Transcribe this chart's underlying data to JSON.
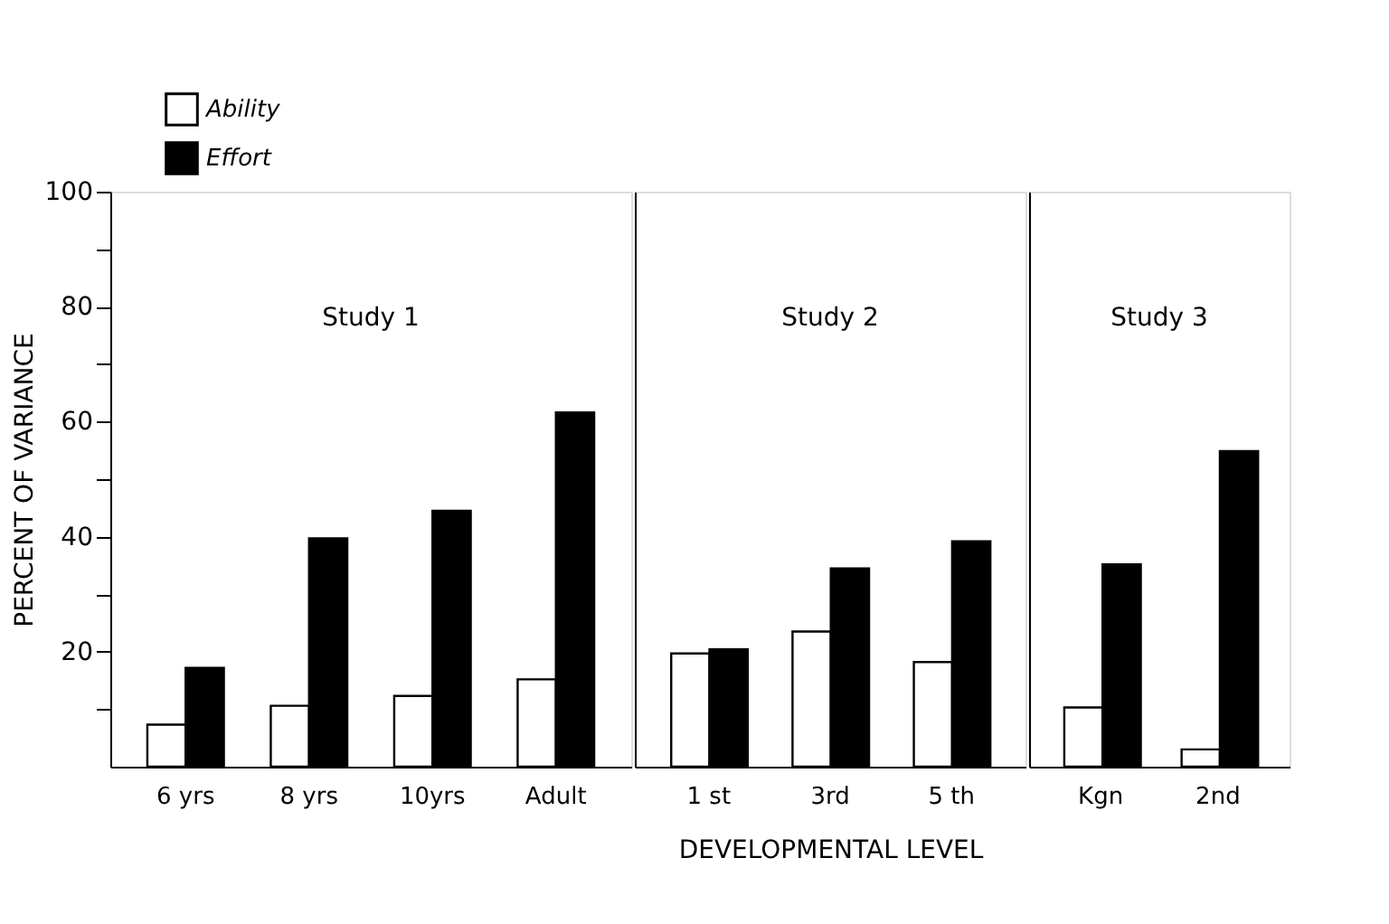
{
  "chart_data": [
    {
      "type": "bar",
      "categories": [
        "6 yrs",
        "8 yrs",
        "10yrs",
        "Adult"
      ],
      "ylabel": "PERCENT OF VARIANCE",
      "ylim": [
        0,
        100
      ],
      "yticks": [
        {
          "value": 10,
          "label": null
        },
        20,
        {
          "value": 30,
          "label": null
        },
        40,
        {
          "value": 50,
          "label": null
        },
        60,
        {
          "value": 70,
          "label": null
        },
        80,
        {
          "value": 90,
          "label": null
        },
        100
      ],
      "legend": "top left",
      "annotations": [
        "Study 1"
      ],
      "series": [
        {
          "name": "Ability",
          "color": "#ffffff",
          "values": [
            7.3,
            10.6,
            12.3,
            15.2
          ]
        },
        {
          "name": "Effort",
          "color": "#000000",
          "values": [
            17.2,
            39.7,
            44.5,
            61.6
          ]
        }
      ]
    },
    {
      "type": "bar",
      "categories": [
        "1 st",
        "3rd",
        "5 th"
      ],
      "xlabel": "DEVELOPMENTAL LEVEL",
      "ylim": [
        0,
        100
      ],
      "tick_labels": "x",
      "annotations": [
        "Study 2"
      ],
      "series": [
        {
          "color": "#ffffff",
          "values": [
            19.7,
            23.5,
            18.2
          ]
        },
        {
          "color": "#000000",
          "values": [
            20.4,
            34.5,
            39.2
          ]
        }
      ]
    },
    {
      "type": "bar",
      "categories": [
        "Kgn",
        "2nd"
      ],
      "ylim": [
        0,
        100
      ],
      "tick_labels": "x",
      "annotations": [
        "Study 3"
      ],
      "series": [
        {
          "color": "#ffffff",
          "values": [
            10.3,
            3.0
          ]
        },
        {
          "color": "#000000",
          "values": [
            35.2,
            54.9
          ]
        }
      ]
    }
  ]
}
